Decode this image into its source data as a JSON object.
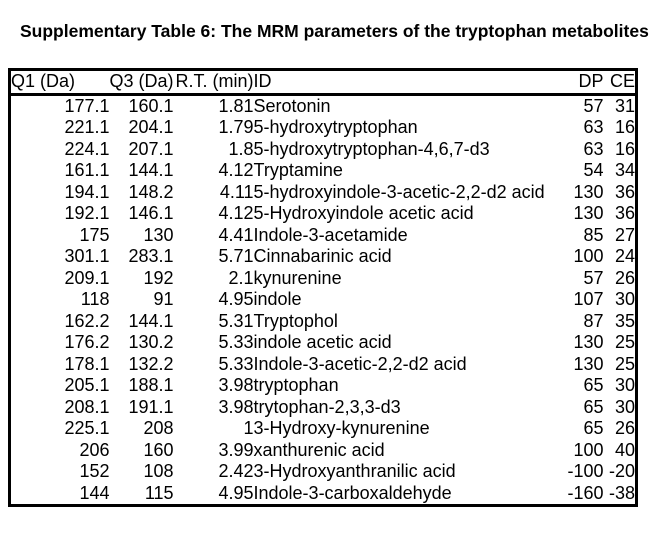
{
  "title": "Supplementary Table 6: The MRM parameters of the tryptophan metabolites",
  "table": {
    "columns": [
      "Q1 (Da)",
      "Q3 (Da)",
      "R.T. (min)",
      "ID",
      "DP",
      "CE"
    ],
    "rows": [
      [
        "177.1",
        "160.1",
        "1.81",
        "Serotonin",
        "57",
        "31"
      ],
      [
        "221.1",
        "204.1",
        "1.79",
        "5-hydroxytryptophan",
        "63",
        "16"
      ],
      [
        "224.1",
        "207.1",
        "1.8",
        "5-hydroxytryptophan-4,6,7-d3",
        "63",
        "16"
      ],
      [
        "161.1",
        "144.1",
        "4.12",
        "Tryptamine",
        "54",
        "34"
      ],
      [
        "194.1",
        "148.2",
        "4.11",
        "5-hydroxyindole-3-acetic-2,2-d2 acid",
        "130",
        "36"
      ],
      [
        "192.1",
        "146.1",
        "4.12",
        "5-Hydroxyindole acetic acid",
        "130",
        "36"
      ],
      [
        "175",
        "130",
        "4.41",
        "Indole-3-acetamide",
        "85",
        "27"
      ],
      [
        "301.1",
        "283.1",
        "5.71",
        "Cinnabarinic acid",
        "100",
        "24"
      ],
      [
        "209.1",
        "192",
        "2.1",
        "kynurenine",
        "57",
        "26"
      ],
      [
        "118",
        "91",
        "4.95",
        "indole",
        "107",
        "30"
      ],
      [
        "162.2",
        "144.1",
        "5.31",
        "Tryptophol",
        "87",
        "35"
      ],
      [
        "176.2",
        "130.2",
        "5.33",
        "indole acetic acid",
        "130",
        "25"
      ],
      [
        "178.1",
        "132.2",
        "5.33",
        "Indole-3-acetic-2,2-d2 acid",
        "130",
        "25"
      ],
      [
        "205.1",
        "188.1",
        "3.98",
        "tryptophan",
        "65",
        "30"
      ],
      [
        "208.1",
        "191.1",
        "3.98",
        "trytophan-2,3,3-d3",
        "65",
        "30"
      ],
      [
        "225.1",
        "208",
        "1",
        "3-Hydroxy-kynurenine",
        "65",
        "26"
      ],
      [
        "206",
        "160",
        "3.99",
        "xanthurenic acid",
        "100",
        "40"
      ],
      [
        "152",
        "108",
        "2.42",
        "3-Hydroxyanthranilic acid",
        "-100",
        "-20"
      ],
      [
        "144",
        "115",
        "4.95",
        "Indole-3-carboxaldehyde",
        "-160",
        "-38"
      ]
    ]
  },
  "colors": {
    "text": "#000000",
    "border": "#000000",
    "background": "#ffffff"
  }
}
